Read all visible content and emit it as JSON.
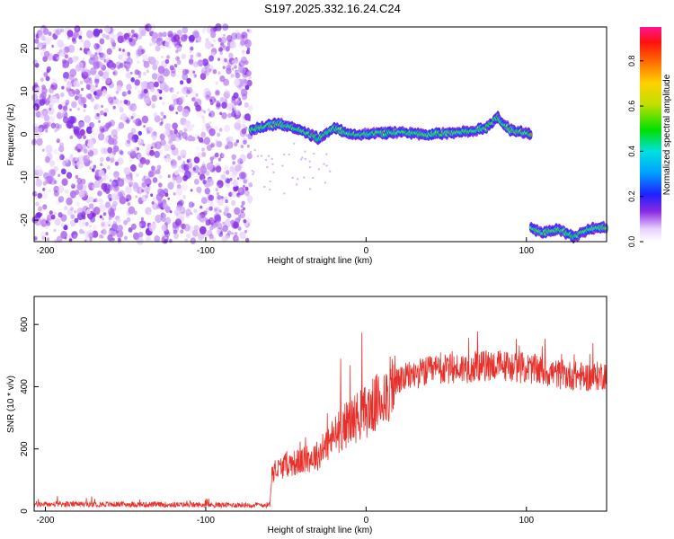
{
  "title": "S197.2025.332.16.24.C24",
  "colors": {
    "snr_line": "#e8302a",
    "spectral_dot": "#8a2be2"
  },
  "chart_data": [
    {
      "type": "heatmap",
      "xlabel": "Height of straight line (km)",
      "ylabel": "Frequency (Hz)",
      "xlim": [
        -207,
        150
      ],
      "ylim": [
        -25,
        25
      ],
      "xticks": [
        -200,
        -100,
        0,
        100
      ],
      "yticks": [
        -20,
        -10,
        0,
        10,
        20
      ],
      "colorbar": {
        "label": "Normalized spectral amplitude",
        "range": [
          0,
          0.95
        ],
        "ticks": [
          0.0,
          0.2,
          0.4,
          0.6,
          0.8
        ],
        "tick_labels": [
          "0.0",
          "0.2",
          "0.4",
          "0.6",
          "0.8"
        ]
      },
      "regions": [
        {
          "name": "noise",
          "x_range": [
            -207,
            -72
          ],
          "freq_range": [
            -25,
            25
          ],
          "amplitude": 0.15
        },
        {
          "name": "main-track",
          "x": [
            -72,
            -55,
            -40,
            -30,
            -20,
            -10,
            0,
            20,
            40,
            60,
            75,
            82,
            90,
            103
          ],
          "freq": [
            1,
            2.5,
            1,
            -1,
            1.5,
            0,
            0,
            0.5,
            0,
            0.5,
            1.5,
            4,
            1,
            0
          ],
          "amplitude": 0.85
        },
        {
          "name": "low-track",
          "x": [
            103,
            110,
            120,
            130,
            140,
            150
          ],
          "freq": [
            -22,
            -23,
            -22,
            -24,
            -22,
            -21.5
          ],
          "amplitude": 0.8
        }
      ]
    },
    {
      "type": "line",
      "xlabel": "Height of straight line (km)",
      "ylabel": "SNR (10 * v/v)",
      "xlim": [
        -207,
        150
      ],
      "ylim": [
        0,
        690
      ],
      "xticks": [
        -200,
        -100,
        0,
        100
      ],
      "yticks": [
        0,
        200,
        400,
        600
      ],
      "series": [
        {
          "name": "SNR",
          "x": [
            -207,
            -150,
            -100,
            -60,
            -59,
            -50,
            -40,
            -30,
            -20,
            -10,
            0,
            10,
            20,
            30,
            40,
            60,
            80,
            100,
            120,
            140,
            150
          ],
          "values": [
            22,
            22,
            20,
            20,
            120,
            150,
            160,
            180,
            240,
            290,
            320,
            360,
            420,
            440,
            450,
            460,
            470,
            460,
            440,
            430,
            440
          ]
        }
      ]
    }
  ]
}
